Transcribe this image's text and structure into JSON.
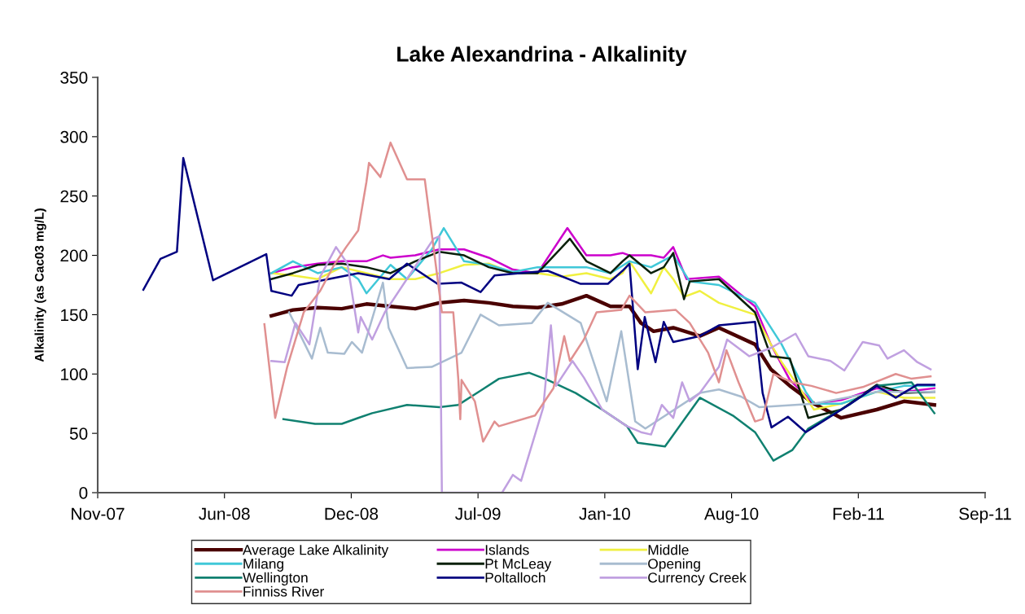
{
  "chart_data": {
    "type": "line",
    "title": "Lake Alexandrina - Alkalinity",
    "ylabel": "Alkalinity (as Cac03 mg/L)",
    "xlim": [
      "2007-11-15",
      "2011-09-15"
    ],
    "xticks": [
      {
        "value": "2007-11-15",
        "label": "Nov-07"
      },
      {
        "value": "2008-06-02",
        "label": "Jun-08"
      },
      {
        "value": "2008-12-19",
        "label": "Dec-08"
      },
      {
        "value": "2009-07-07",
        "label": "Jul-09"
      },
      {
        "value": "2010-01-23",
        "label": "Jan-10"
      },
      {
        "value": "2010-08-11",
        "label": "Aug-10"
      },
      {
        "value": "2011-02-27",
        "label": "Feb-11"
      },
      {
        "value": "2011-09-15",
        "label": "Sep-11"
      }
    ],
    "ylim": [
      0,
      350
    ],
    "yticks": [
      0,
      50,
      100,
      150,
      200,
      250,
      300,
      350
    ],
    "grid": false,
    "legend": "bottom",
    "marker": "none",
    "line_style": "solid",
    "series": [
      {
        "name": "Average Lake Alkalinity",
        "color": "#4a0000",
        "x": [
          "2008-08-15",
          "2008-09-18",
          "2008-10-27",
          "2008-12-04",
          "2009-01-12",
          "2009-02-19",
          "2009-03-30",
          "2009-05-07",
          "2009-06-15",
          "2009-07-24",
          "2009-08-31",
          "2009-10-09",
          "2009-11-16",
          "2009-12-25",
          "2010-02-01",
          "2010-03-03",
          "2010-03-21",
          "2010-04-10",
          "2010-05-11",
          "2010-06-22",
          "2010-07-22",
          "2010-09-17",
          "2010-10-12",
          "2010-11-11",
          "2010-12-19",
          "2011-01-31",
          "2011-03-28",
          "2011-05-10",
          "2011-06-27"
        ],
        "values": [
          149,
          154,
          156,
          155,
          159,
          157,
          155,
          160,
          162,
          160,
          157,
          156,
          159,
          166,
          157,
          157,
          143,
          136,
          139,
          132,
          139,
          125,
          104,
          90,
          75,
          63,
          70,
          77,
          74
        ]
      },
      {
        "name": "Islands",
        "color": "#cc00cc",
        "x": [
          "2008-08-15",
          "2008-09-18",
          "2008-10-27",
          "2008-12-04",
          "2009-01-12",
          "2009-02-07",
          "2009-02-19",
          "2009-03-30",
          "2009-05-07",
          "2009-06-15",
          "2009-07-24",
          "2009-08-31",
          "2009-10-09",
          "2009-11-25",
          "2009-12-25",
          "2010-02-01",
          "2010-02-20",
          "2010-03-03",
          "2010-04-06",
          "2010-04-26",
          "2010-05-11",
          "2010-06-01",
          "2010-07-22",
          "2010-09-17",
          "2010-10-12",
          "2010-11-11",
          "2010-12-19",
          "2011-01-31",
          "2011-03-28",
          "2011-05-10",
          "2011-06-27"
        ],
        "values": [
          185,
          190,
          193,
          195,
          195,
          200,
          198,
          200,
          205,
          205,
          198,
          188,
          185,
          223,
          200,
          200,
          202,
          200,
          200,
          198,
          207,
          180,
          182,
          157,
          125,
          95,
          75,
          78,
          88,
          85,
          88
        ]
      },
      {
        "name": "Middle",
        "color": "#f0f040",
        "x": [
          "2008-08-15",
          "2008-09-18",
          "2008-10-27",
          "2008-12-04",
          "2009-01-12",
          "2009-02-19",
          "2009-03-30",
          "2009-05-07",
          "2009-06-15",
          "2009-07-24",
          "2009-08-31",
          "2009-10-09",
          "2009-11-16",
          "2009-12-25",
          "2010-02-01",
          "2010-02-20",
          "2010-03-03",
          "2010-04-06",
          "2010-04-26",
          "2010-05-11",
          "2010-05-28",
          "2010-06-22",
          "2010-07-22",
          "2010-09-17",
          "2010-10-12",
          "2010-10-29",
          "2010-11-24",
          "2010-12-19",
          "2011-01-31",
          "2011-03-28",
          "2011-05-10",
          "2011-06-27"
        ],
        "values": [
          185,
          183,
          180,
          190,
          185,
          180,
          180,
          185,
          192,
          193,
          185,
          185,
          182,
          185,
          180,
          185,
          195,
          168,
          190,
          180,
          165,
          170,
          160,
          150,
          125,
          110,
          90,
          70,
          75,
          85,
          80,
          80
        ]
      },
      {
        "name": "Milang",
        "color": "#40c8d8",
        "x": [
          "2008-08-15",
          "2008-09-18",
          "2008-10-27",
          "2008-12-04",
          "2008-12-30",
          "2009-01-12",
          "2009-02-19",
          "2009-03-17",
          "2009-04-25",
          "2009-05-14",
          "2009-06-15",
          "2009-07-24",
          "2009-08-31",
          "2009-10-09",
          "2009-11-16",
          "2009-12-25",
          "2010-02-01",
          "2010-03-03",
          "2010-04-06",
          "2010-05-11",
          "2010-06-06",
          "2010-07-22",
          "2010-09-17",
          "2010-10-29",
          "2010-12-06",
          "2010-12-19",
          "2011-01-31",
          "2011-03-28",
          "2011-05-10",
          "2011-06-27"
        ],
        "values": [
          185,
          195,
          185,
          190,
          180,
          168,
          192,
          180,
          205,
          223,
          195,
          192,
          186,
          190,
          190,
          190,
          185,
          195,
          190,
          200,
          178,
          175,
          160,
          125,
          85,
          75,
          75,
          85,
          90,
          90
        ]
      },
      {
        "name": "Pt McLeay",
        "color": "#0a200a",
        "x": [
          "2008-08-15",
          "2008-09-18",
          "2008-10-27",
          "2008-12-04",
          "2009-01-12",
          "2009-02-19",
          "2009-03-30",
          "2009-05-07",
          "2009-06-15",
          "2009-07-24",
          "2009-08-31",
          "2009-10-09",
          "2009-11-29",
          "2009-12-25",
          "2010-02-01",
          "2010-02-20",
          "2010-03-03",
          "2010-04-06",
          "2010-04-26",
          "2010-05-11",
          "2010-05-28",
          "2010-06-06",
          "2010-07-22",
          "2010-09-17",
          "2010-10-12",
          "2010-11-11",
          "2010-12-10",
          "2011-01-31",
          "2011-03-28",
          "2011-05-10",
          "2011-06-27"
        ],
        "values": [
          180,
          185,
          192,
          193,
          190,
          185,
          195,
          203,
          200,
          190,
          185,
          185,
          214,
          195,
          185,
          195,
          200,
          185,
          190,
          202,
          163,
          178,
          180,
          152,
          115,
          113,
          63,
          70,
          91,
          84,
          85
        ]
      },
      {
        "name": "Opening",
        "color": "#a8bcd0",
        "x": [
          "2008-09-12",
          "2008-10-18",
          "2008-10-31",
          "2008-11-12",
          "2008-12-08",
          "2008-12-20",
          "2009-01-05",
          "2009-02-07",
          "2009-02-16",
          "2009-03-17",
          "2009-04-25",
          "2009-06-11",
          "2009-07-11",
          "2009-08-09",
          "2009-09-30",
          "2009-10-25",
          "2009-12-16",
          "2010-01-26",
          "2010-02-18",
          "2010-03-12",
          "2010-03-28",
          "2010-06-22",
          "2010-07-22",
          "2010-08-26",
          "2010-09-24",
          "2010-12-19",
          "2011-03-28",
          "2011-05-10",
          "2011-06-27"
        ],
        "values": [
          152,
          113,
          139,
          118,
          117,
          127,
          118,
          177,
          139,
          105,
          106,
          118,
          150,
          141,
          143,
          160,
          143,
          77,
          136,
          60,
          54,
          84,
          87,
          81,
          72,
          75,
          85,
          85,
          85
        ]
      },
      {
        "name": "Wellington",
        "color": "#108070",
        "x": [
          "2008-09-03",
          "2008-10-23",
          "2008-12-04",
          "2008-12-30",
          "2009-01-21",
          "2009-03-17",
          "2009-05-07",
          "2009-06-06",
          "2009-07-11",
          "2009-08-09",
          "2009-09-26",
          "2009-10-25",
          "2009-12-08",
          "2010-01-19",
          "2010-02-27",
          "2010-03-16",
          "2010-04-28",
          "2010-06-22",
          "2010-08-13",
          "2010-09-17",
          "2010-10-16",
          "2010-11-15",
          "2010-12-10",
          "2011-02-12",
          "2011-03-28",
          "2011-05-22",
          "2011-06-27"
        ],
        "values": [
          62,
          58,
          58,
          63,
          67,
          74,
          72,
          74,
          86,
          96,
          101,
          95,
          84,
          70,
          56,
          42,
          39,
          80,
          65,
          51,
          27,
          36,
          54,
          74,
          90,
          93,
          67
        ]
      },
      {
        "name": "Poltalloch",
        "color": "#000080",
        "x": [
          "2008-01-26",
          "2008-02-22",
          "2008-03-19",
          "2008-03-29",
          "2008-05-15",
          "2008-08-07",
          "2008-08-15",
          "2008-09-16",
          "2008-09-27",
          "2008-12-30",
          "2009-02-17",
          "2009-03-17",
          "2009-05-04",
          "2009-06-11",
          "2009-07-11",
          "2009-08-02",
          "2009-10-25",
          "2009-12-16",
          "2010-01-28",
          "2010-02-20",
          "2010-03-03",
          "2010-03-16",
          "2010-03-27",
          "2010-04-13",
          "2010-04-26",
          "2010-05-11",
          "2010-06-22",
          "2010-07-22",
          "2010-09-17",
          "2010-09-29",
          "2010-10-13",
          "2010-11-08",
          "2010-12-06",
          "2011-02-12",
          "2011-03-28",
          "2011-04-27",
          "2011-05-31",
          "2011-06-27"
        ],
        "values": [
          171,
          197,
          203,
          282,
          179,
          201,
          170,
          166,
          175,
          185,
          180,
          193,
          176,
          177,
          169,
          183,
          187,
          176,
          176,
          187,
          193,
          104,
          148,
          110,
          144,
          127,
          132,
          141,
          144,
          84,
          55,
          64,
          51,
          74,
          90,
          80,
          91,
          91
        ]
      },
      {
        "name": "Currency Creek",
        "color": "#c0a0e0",
        "x": [
          "2008-08-15",
          "2008-09-05",
          "2008-09-22",
          "2008-10-14",
          "2008-10-31",
          "2008-11-25",
          "2008-12-13",
          "2008-12-30",
          "2009-01-03",
          "2009-01-21",
          "2009-02-10",
          "2009-04-28",
          "2009-05-07",
          "2009-05-11",
          "2009-08-14",
          "2009-08-31",
          "2009-09-13",
          "2009-10-18",
          "2009-10-30",
          "2009-11-07",
          "2009-12-03",
          "2009-12-21",
          "2010-01-19",
          "2010-02-27",
          "2010-03-21",
          "2010-04-06",
          "2010-04-23",
          "2010-05-11",
          "2010-05-25",
          "2010-06-06",
          "2010-06-22",
          "2010-07-22",
          "2010-08-04",
          "2010-09-08",
          "2010-10-12",
          "2010-11-20",
          "2010-12-10",
          "2011-01-14",
          "2011-02-05",
          "2011-03-06",
          "2011-04-01",
          "2011-04-14",
          "2011-05-10",
          "2011-05-31",
          "2011-06-21"
        ],
        "values": [
          111,
          110,
          143,
          125,
          182,
          207,
          193,
          135,
          148,
          129,
          152,
          214,
          216,
          0,
          0,
          15,
          10,
          72,
          141,
          90,
          111,
          97,
          70,
          56,
          51,
          49,
          74,
          63,
          93,
          77,
          84,
          106,
          129,
          115,
          122,
          134,
          115,
          111,
          103,
          127,
          124,
          113,
          120,
          110,
          104
        ]
      },
      {
        "name": "Finniss River",
        "color": "#e09090",
        "x": [
          "2008-08-04",
          "2008-08-21",
          "2008-09-09",
          "2008-10-05",
          "2008-10-31",
          "2008-11-21",
          "2008-12-11",
          "2008-12-30",
          "2009-01-12",
          "2009-01-16",
          "2009-02-03",
          "2009-02-19",
          "2009-03-17",
          "2009-04-14",
          "2009-05-11",
          "2009-05-29",
          "2009-06-06",
          "2009-06-09",
          "2009-06-11",
          "2009-07-02",
          "2009-07-15",
          "2009-08-02",
          "2009-08-09",
          "2009-10-05",
          "2009-11-03",
          "2009-11-20",
          "2009-11-29",
          "2009-12-21",
          "2010-01-10",
          "2010-02-18",
          "2010-03-03",
          "2010-03-28",
          "2010-05-15",
          "2010-06-06",
          "2010-07-05",
          "2010-07-22",
          "2010-08-03",
          "2010-08-22",
          "2010-09-17",
          "2010-09-29",
          "2010-10-16",
          "2010-11-15",
          "2010-12-15",
          "2011-01-23",
          "2011-03-06",
          "2011-04-27",
          "2011-05-22",
          "2011-06-21"
        ],
        "values": [
          142,
          63,
          106,
          152,
          170,
          191,
          207,
          221,
          262,
          278,
          266,
          295,
          264,
          264,
          152,
          152,
          95,
          62,
          95,
          77,
          43,
          60,
          56,
          65,
          88,
          132,
          111,
          129,
          152,
          154,
          166,
          152,
          154,
          143,
          118,
          93,
          120,
          93,
          60,
          62,
          100,
          93,
          90,
          84,
          89,
          100,
          96,
          98
        ]
      }
    ]
  }
}
